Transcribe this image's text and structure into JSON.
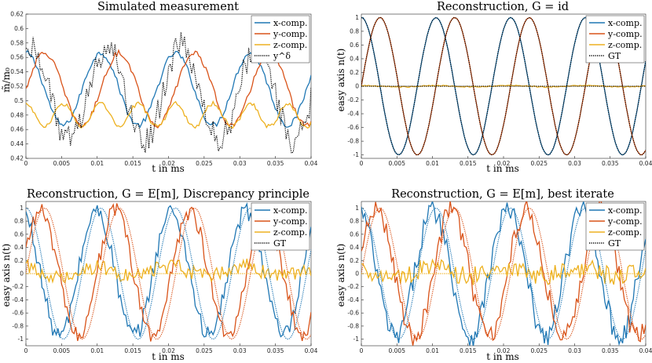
{
  "colors": {
    "x": "#1f77b4",
    "y": "#d95319",
    "z": "#edb120",
    "gt": "#000000"
  },
  "chart_data": [
    {
      "type": "line",
      "title": "Simulated measurement",
      "xlabel": "t in ms",
      "ylabel": "m̃/m₀",
      "xlim": [
        0,
        0.04
      ],
      "ylim": [
        0.42,
        0.62
      ],
      "xticks": [
        0,
        0.005,
        0.01,
        0.015,
        0.02,
        0.025,
        0.03,
        0.035,
        0.04
      ],
      "xtick_labels": [
        "0",
        "0.005",
        "0.01",
        "0.015",
        "0.02",
        "0.025",
        "0.03",
        "0.035",
        "0.04"
      ],
      "yticks": [
        0.42,
        0.44,
        0.46,
        0.48,
        0.5,
        0.52,
        0.54,
        0.56,
        0.58,
        0.6,
        0.62
      ],
      "ytick_labels": [
        "0.42",
        "0.44",
        "0.46",
        "0.48",
        "0.5",
        "0.52",
        "0.54",
        "0.56",
        "0.58",
        "0.6",
        "0.62"
      ],
      "legend_loc": "top-right",
      "series": [
        {
          "name": "x-comp.",
          "key": "x",
          "style": "solid",
          "base": 0.516,
          "amp": 0.05,
          "phase": 0,
          "noise": 0.004
        },
        {
          "name": "y-comp.",
          "key": "y",
          "style": "solid",
          "base": 0.516,
          "amp": 0.05,
          "phase": -1.5708,
          "noise": 0.004
        },
        {
          "name": "z-comp.",
          "key": "z",
          "style": "solid",
          "base": 0.48,
          "amp": 0.016,
          "phase": 0,
          "noise": 0.003,
          "double": true
        },
        {
          "name": "y^δ",
          "key": "gt",
          "style": "dotted",
          "base": 0.51,
          "amp": 0.065,
          "phase": -0.5,
          "noise": 0.02
        }
      ],
      "legend": [
        "x-comp.",
        "y-comp.",
        "z-comp.",
        "y^δ"
      ]
    },
    {
      "type": "line",
      "title": "Reconstruction, G = id",
      "xlabel": "t in ms",
      "ylabel": "easy axis n(t)",
      "xlim": [
        0,
        0.04
      ],
      "ylim": [
        -1.05,
        1.05
      ],
      "xticks": [
        0,
        0.005,
        0.01,
        0.015,
        0.02,
        0.025,
        0.03,
        0.035,
        0.04
      ],
      "xtick_labels": [
        "0",
        "0.005",
        "0.01",
        "0.015",
        "0.02",
        "0.025",
        "0.03",
        "0.035",
        "0.04"
      ],
      "yticks": [
        -1,
        -0.8,
        -0.6,
        -0.4,
        -0.2,
        0,
        0.2,
        0.4,
        0.6,
        0.8,
        1
      ],
      "ytick_labels": [
        "-1",
        "-0.8",
        "-0.6",
        "-0.4",
        "-0.2",
        "0",
        "0.2",
        "0.4",
        "0.6",
        "0.8",
        "1"
      ],
      "legend_loc": "top-right",
      "series": [
        {
          "name": "x-comp.",
          "key": "x",
          "style": "solid",
          "base": 0,
          "amp": 1,
          "phase": 0,
          "noise": 0.005
        },
        {
          "name": "y-comp.",
          "key": "y",
          "style": "solid",
          "base": 0,
          "amp": 1,
          "phase": -1.5708,
          "noise": 0.005
        },
        {
          "name": "z-comp.",
          "key": "z",
          "style": "solid",
          "base": 0,
          "amp": 0.01,
          "phase": 0,
          "noise": 0.008
        },
        {
          "name": "GT x",
          "key": "gt",
          "style": "dotted",
          "base": 0,
          "amp": 1,
          "phase": 0,
          "noise": 0
        },
        {
          "name": "GT y",
          "key": "gt",
          "style": "dotted",
          "base": 0,
          "amp": 1,
          "phase": -1.5708,
          "noise": 0
        },
        {
          "name": "GT z",
          "key": "gt",
          "style": "dotted",
          "base": 0,
          "amp": 0,
          "phase": 0,
          "noise": 0
        }
      ],
      "legend": [
        "x-comp.",
        "y-comp.",
        "z-comp.",
        "GT"
      ]
    },
    {
      "type": "line",
      "title": "Reconstruction, G = E[m], Discrepancy principle",
      "xlabel": "t in ms",
      "ylabel": "easy axis n(t)",
      "xlim": [
        0,
        0.04
      ],
      "ylim": [
        -1.1,
        1.1
      ],
      "xticks": [
        0,
        0.005,
        0.01,
        0.015,
        0.02,
        0.025,
        0.03,
        0.035,
        0.04
      ],
      "xtick_labels": [
        "0",
        "0.005",
        "0.01",
        "0.015",
        "0.02",
        "0.025",
        "0.03",
        "0.035",
        "0.04"
      ],
      "yticks": [
        -1,
        -0.8,
        -0.6,
        -0.4,
        -0.2,
        0,
        0.2,
        0.4,
        0.6,
        0.8,
        1
      ],
      "ytick_labels": [
        "-1",
        "-0.8",
        "-0.6",
        "-0.4",
        "-0.2",
        "0",
        "0.2",
        "0.4",
        "0.6",
        "0.8",
        "1"
      ],
      "legend_loc": "top-right",
      "series": [
        {
          "name": "x-comp.",
          "key": "x",
          "style": "solid",
          "base": 0,
          "amp": 0.95,
          "phase": 0.35,
          "noise": 0.14
        },
        {
          "name": "y-comp.",
          "key": "y",
          "style": "solid",
          "base": 0,
          "amp": 0.95,
          "phase": -1.2,
          "noise": 0.14
        },
        {
          "name": "z-comp.",
          "key": "z",
          "style": "solid",
          "base": 0.03,
          "amp": 0.08,
          "phase": 0.4,
          "noise": 0.12
        },
        {
          "name": "GT x",
          "key": "x",
          "style": "dotted",
          "base": 0,
          "amp": 1,
          "phase": 0,
          "noise": 0
        },
        {
          "name": "GT y",
          "key": "y",
          "style": "dotted",
          "base": 0,
          "amp": 1,
          "phase": -1.5708,
          "noise": 0
        },
        {
          "name": "GT z",
          "key": "z",
          "style": "dotted",
          "base": 0,
          "amp": 0,
          "phase": 0,
          "noise": 0
        }
      ],
      "legend": [
        "x-comp.",
        "y-comp.",
        "z-comp.",
        "GT"
      ]
    },
    {
      "type": "line",
      "title": "Reconstruction, G = E[m], best iterate",
      "xlabel": "t in ms",
      "ylabel": "easy axis n(t)",
      "xlim": [
        0,
        0.04
      ],
      "ylim": [
        -1.1,
        1.1
      ],
      "xticks": [
        0,
        0.005,
        0.01,
        0.015,
        0.02,
        0.025,
        0.03,
        0.035,
        0.04
      ],
      "xtick_labels": [
        "0",
        "0.005",
        "0.01",
        "0.015",
        "0.02",
        "0.025",
        "0.03",
        "0.035",
        "0.04"
      ],
      "yticks": [
        -1,
        -0.8,
        -0.6,
        -0.4,
        -0.2,
        0,
        0.2,
        0.4,
        0.6,
        0.8,
        1
      ],
      "ytick_labels": [
        "-1",
        "-0.8",
        "-0.6",
        "-0.4",
        "-0.2",
        "0",
        "0.2",
        "0.4",
        "0.6",
        "0.8",
        "1"
      ],
      "legend_loc": "top-right",
      "series": [
        {
          "name": "x-comp.",
          "key": "x",
          "style": "solid",
          "base": 0,
          "amp": 0.97,
          "phase": 0.25,
          "noise": 0.17
        },
        {
          "name": "y-comp.",
          "key": "y",
          "style": "solid",
          "base": 0,
          "amp": 0.97,
          "phase": -1.3,
          "noise": 0.17
        },
        {
          "name": "z-comp.",
          "key": "z",
          "style": "solid",
          "base": 0.02,
          "amp": 0.06,
          "phase": 0.4,
          "noise": 0.15
        },
        {
          "name": "GT x",
          "key": "x",
          "style": "dotted",
          "base": 0,
          "amp": 1,
          "phase": 0,
          "noise": 0
        },
        {
          "name": "GT y",
          "key": "y",
          "style": "dotted",
          "base": 0,
          "amp": 1,
          "phase": -1.5708,
          "noise": 0
        },
        {
          "name": "GT z",
          "key": "z",
          "style": "dotted",
          "base": 0,
          "amp": 0,
          "phase": 0,
          "noise": 0
        }
      ],
      "legend": [
        "x-comp.",
        "y-comp.",
        "z-comp.",
        "GT"
      ]
    }
  ],
  "signal": {
    "period_ms": 0.0105,
    "samples": 161
  }
}
